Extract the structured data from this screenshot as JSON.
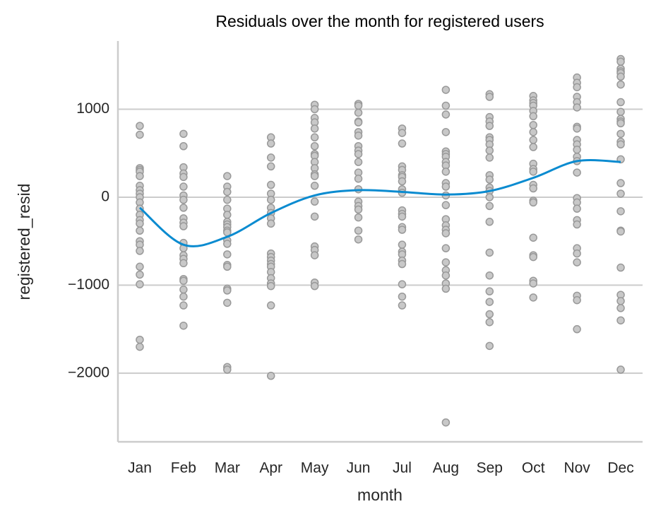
{
  "chart_data": {
    "type": "strip",
    "title": "Residuals over the month for registered users",
    "x_label": "month",
    "y_label": "registered_resid",
    "categories": [
      "Jan",
      "Feb",
      "Mar",
      "Apr",
      "May",
      "Jun",
      "Jul",
      "Aug",
      "Sep",
      "Oct",
      "Nov",
      "Dec"
    ],
    "values": [
      [
        810,
        710,
        330,
        310,
        290,
        240,
        130,
        80,
        40,
        0,
        -60,
        -130,
        -200,
        -260,
        -300,
        -380,
        -500,
        -540,
        -610,
        -790,
        -880,
        -990,
        -1620,
        -1700
      ],
      [
        720,
        580,
        340,
        270,
        230,
        120,
        20,
        -30,
        -120,
        -240,
        -290,
        -330,
        -520,
        -580,
        -660,
        -700,
        -750,
        -930,
        -950,
        -1050,
        -1130,
        -1230,
        -1460
      ],
      [
        240,
        120,
        60,
        -30,
        -130,
        -200,
        -280,
        -310,
        -340,
        -380,
        -400,
        -490,
        -530,
        -650,
        -770,
        -790,
        -1040,
        -1060,
        -1200,
        -1930,
        -1960
      ],
      [
        680,
        610,
        450,
        350,
        140,
        40,
        -30,
        -120,
        -180,
        -240,
        -300,
        -640,
        -680,
        -720,
        -760,
        -790,
        -850,
        -920,
        -980,
        -1010,
        -1230,
        -2030
      ],
      [
        1050,
        1000,
        900,
        850,
        780,
        680,
        580,
        490,
        470,
        400,
        330,
        260,
        240,
        130,
        -50,
        -220,
        -560,
        -600,
        -660,
        -970,
        -1010
      ],
      [
        1060,
        1040,
        960,
        860,
        850,
        740,
        700,
        580,
        530,
        490,
        400,
        280,
        210,
        90,
        -50,
        -100,
        -140,
        -230,
        -380,
        -480
      ],
      [
        780,
        730,
        610,
        350,
        310,
        250,
        230,
        180,
        90,
        50,
        -150,
        -190,
        -220,
        -340,
        -370,
        -540,
        -620,
        -650,
        -720,
        -760,
        -990,
        -1130,
        -1230
      ],
      [
        1220,
        1040,
        940,
        740,
        520,
        490,
        460,
        400,
        360,
        290,
        160,
        120,
        20,
        -90,
        -250,
        -320,
        -370,
        -410,
        -580,
        -740,
        -830,
        -890,
        -980,
        -1040,
        -2560
      ],
      [
        1170,
        1140,
        910,
        860,
        810,
        680,
        650,
        600,
        530,
        450,
        250,
        200,
        110,
        70,
        0,
        -100,
        -280,
        -630,
        -890,
        -1070,
        -1190,
        -1330,
        -1420,
        -1690
      ],
      [
        1150,
        1100,
        1070,
        1040,
        980,
        920,
        820,
        740,
        650,
        570,
        380,
        320,
        290,
        140,
        100,
        -40,
        -60,
        -460,
        -660,
        -680,
        -950,
        -980,
        -1140
      ],
      [
        1360,
        1300,
        1250,
        1140,
        1080,
        1020,
        800,
        780,
        650,
        600,
        540,
        460,
        410,
        280,
        -10,
        -60,
        -130,
        -260,
        -310,
        -580,
        -640,
        -740,
        -1120,
        -1170,
        -1500
      ],
      [
        1570,
        1540,
        1460,
        1430,
        1410,
        1370,
        1280,
        1080,
        970,
        890,
        860,
        840,
        720,
        630,
        600,
        430,
        160,
        40,
        -160,
        -380,
        -390,
        -800,
        -1110,
        -1180,
        -1260,
        -1400,
        -1960
      ]
    ],
    "point_color": "#c8c8c8",
    "point_edge_color": "#999999",
    "trend": {
      "color": "#0a8bd0",
      "values": [
        -120,
        -540,
        -450,
        -180,
        20,
        80,
        60,
        30,
        70,
        220,
        410,
        400
      ]
    },
    "ylim": [
      -2780,
      1775
    ],
    "yticks": [
      {
        "value": -2000,
        "label": "−2000"
      },
      {
        "value": -1000,
        "label": "−1000"
      },
      0,
      1000
    ],
    "grid": true
  }
}
